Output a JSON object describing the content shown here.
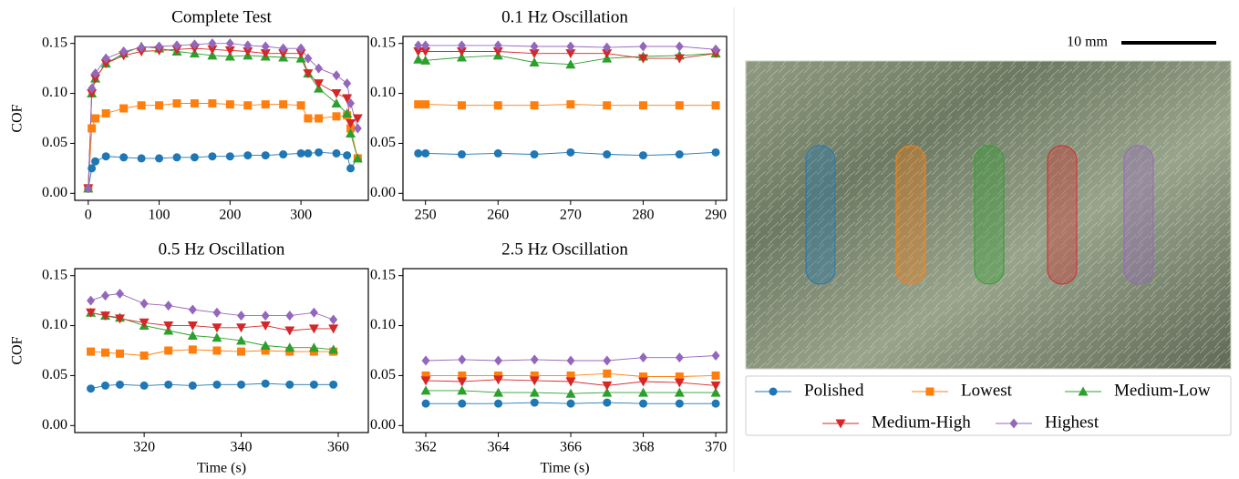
{
  "chart_data": [
    {
      "type": "line",
      "title": "Complete Test",
      "ylabel": "COF",
      "x": [
        0,
        5,
        10,
        25,
        50,
        75,
        100,
        125,
        150,
        175,
        200,
        225,
        250,
        275,
        300,
        310,
        325,
        350,
        365,
        370,
        380
      ],
      "series": [
        {
          "values": [
            0.005,
            0.025,
            0.032,
            0.037,
            0.036,
            0.035,
            0.035,
            0.036,
            0.036,
            0.037,
            0.037,
            0.038,
            0.038,
            0.039,
            0.04,
            0.04,
            0.041,
            0.04,
            0.038,
            0.025,
            0.035
          ]
        },
        {
          "values": [
            0.005,
            0.065,
            0.075,
            0.08,
            0.085,
            0.088,
            0.088,
            0.09,
            0.09,
            0.09,
            0.089,
            0.088,
            0.089,
            0.089,
            0.088,
            0.075,
            0.075,
            0.077,
            0.078,
            0.065,
            0.035
          ]
        },
        {
          "values": [
            0.005,
            0.1,
            0.115,
            0.13,
            0.14,
            0.147,
            0.145,
            0.142,
            0.14,
            0.138,
            0.137,
            0.138,
            0.137,
            0.136,
            0.135,
            0.12,
            0.105,
            0.09,
            0.08,
            0.06,
            0.035
          ]
        },
        {
          "values": [
            0.005,
            0.1,
            0.115,
            0.13,
            0.138,
            0.142,
            0.143,
            0.144,
            0.145,
            0.144,
            0.143,
            0.142,
            0.14,
            0.14,
            0.14,
            0.12,
            0.11,
            0.1,
            0.095,
            0.07,
            0.075
          ]
        },
        {
          "values": [
            0.005,
            0.105,
            0.12,
            0.135,
            0.142,
            0.146,
            0.147,
            0.148,
            0.149,
            0.15,
            0.15,
            0.148,
            0.147,
            0.145,
            0.145,
            0.135,
            0.125,
            0.118,
            0.11,
            0.09,
            0.065
          ]
        }
      ],
      "xlim": [
        -19,
        395
      ],
      "ylim": [
        -0.007,
        0.157
      ],
      "xticks": [
        0,
        100,
        200,
        300
      ],
      "yticks": [
        {
          "value": 0,
          "label": "0.00"
        },
        0.05,
        {
          "value": 0.1,
          "label": "0.10"
        },
        0.15
      ]
    },
    {
      "type": "line",
      "title": "0.1 Hz Oscillation",
      "x": [
        249,
        250,
        255,
        260,
        265,
        270,
        275,
        280,
        285,
        290
      ],
      "series": [
        {
          "values": [
            0.04,
            0.04,
            0.039,
            0.04,
            0.039,
            0.041,
            0.039,
            0.038,
            0.039,
            0.041
          ]
        },
        {
          "values": [
            0.089,
            0.089,
            0.088,
            0.088,
            0.088,
            0.089,
            0.088,
            0.088,
            0.088,
            0.088
          ]
        },
        {
          "values": [
            0.134,
            0.133,
            0.136,
            0.138,
            0.131,
            0.129,
            0.135,
            0.137,
            0.138,
            0.14
          ]
        },
        {
          "values": [
            0.142,
            0.142,
            0.142,
            0.142,
            0.14,
            0.14,
            0.14,
            0.135,
            0.135,
            0.14
          ]
        },
        {
          "values": [
            0.148,
            0.148,
            0.148,
            0.148,
            0.147,
            0.147,
            0.146,
            0.147,
            0.147,
            0.144
          ]
        }
      ],
      "xlim": [
        246.9,
        291.5
      ],
      "ylim": [
        -0.007,
        0.157
      ],
      "xticks": [
        250,
        260,
        270,
        280,
        290
      ],
      "yticks": [
        {
          "value": 0,
          "label": "0.00"
        },
        0.05,
        {
          "value": 0.1,
          "label": "0.10"
        },
        0.15
      ]
    },
    {
      "type": "line",
      "title": "0.5 Hz Oscillation",
      "ylabel": "COF",
      "xlabel": "Time (s)",
      "x": [
        309,
        312,
        315,
        320,
        325,
        330,
        335,
        340,
        345,
        350,
        355,
        359
      ],
      "series": [
        {
          "values": [
            0.037,
            0.04,
            0.041,
            0.04,
            0.041,
            0.04,
            0.041,
            0.041,
            0.042,
            0.041,
            0.041,
            0.041
          ]
        },
        {
          "values": [
            0.074,
            0.073,
            0.072,
            0.07,
            0.075,
            0.076,
            0.075,
            0.074,
            0.075,
            0.074,
            0.074,
            0.074
          ]
        },
        {
          "values": [
            0.113,
            0.11,
            0.108,
            0.1,
            0.095,
            0.09,
            0.088,
            0.085,
            0.08,
            0.078,
            0.078,
            0.076
          ]
        },
        {
          "values": [
            0.113,
            0.11,
            0.107,
            0.103,
            0.1,
            0.1,
            0.098,
            0.098,
            0.1,
            0.095,
            0.097,
            0.097
          ]
        },
        {
          "values": [
            0.125,
            0.13,
            0.132,
            0.122,
            0.12,
            0.116,
            0.113,
            0.11,
            0.11,
            0.11,
            0.113,
            0.106
          ]
        }
      ],
      "xlim": [
        305.7,
        366.2
      ],
      "ylim": [
        -0.007,
        0.157
      ],
      "xticks": [
        320,
        340,
        360
      ],
      "yticks": [
        {
          "value": 0,
          "label": "0.00"
        },
        0.05,
        {
          "value": 0.1,
          "label": "0.10"
        },
        0.15
      ]
    },
    {
      "type": "line",
      "title": "2.5 Hz Oscillation",
      "xlabel": "Time (s)",
      "x": [
        362,
        363,
        364,
        365,
        366,
        367,
        368,
        369,
        370
      ],
      "series": [
        {
          "values": [
            0.022,
            0.022,
            0.022,
            0.023,
            0.022,
            0.023,
            0.022,
            0.022,
            0.022
          ]
        },
        {
          "values": [
            0.05,
            0.05,
            0.05,
            0.05,
            0.05,
            0.052,
            0.049,
            0.049,
            0.05
          ]
        },
        {
          "values": [
            0.035,
            0.035,
            0.033,
            0.033,
            0.032,
            0.033,
            0.033,
            0.033,
            0.033
          ]
        },
        {
          "values": [
            0.045,
            0.044,
            0.046,
            0.045,
            0.044,
            0.04,
            0.044,
            0.043,
            0.04
          ]
        },
        {
          "values": [
            0.065,
            0.066,
            0.065,
            0.066,
            0.065,
            0.065,
            0.068,
            0.068,
            0.07
          ]
        }
      ],
      "xlim": [
        361.37,
        370.3
      ],
      "ylim": [
        -0.007,
        0.157
      ],
      "xticks": [
        362,
        364,
        366,
        368,
        370
      ],
      "yticks": [
        {
          "value": 0,
          "label": "0.00"
        },
        0.05,
        {
          "value": 0.1,
          "label": "0.10"
        },
        0.15
      ]
    }
  ],
  "legend": [
    {
      "name": "Polished",
      "color": "#1f77b4",
      "marker": "circle"
    },
    {
      "name": "Lowest",
      "color": "#ff7f0e",
      "marker": "square"
    },
    {
      "name": "Medium-Low",
      "color": "#2ca02c",
      "marker": "triangle-up"
    },
    {
      "name": "Medium-High",
      "color": "#d62728",
      "marker": "triangle-down"
    },
    {
      "name": "Highest",
      "color": "#9467bd",
      "marker": "diamond"
    }
  ],
  "scale_bar": "10 mm"
}
